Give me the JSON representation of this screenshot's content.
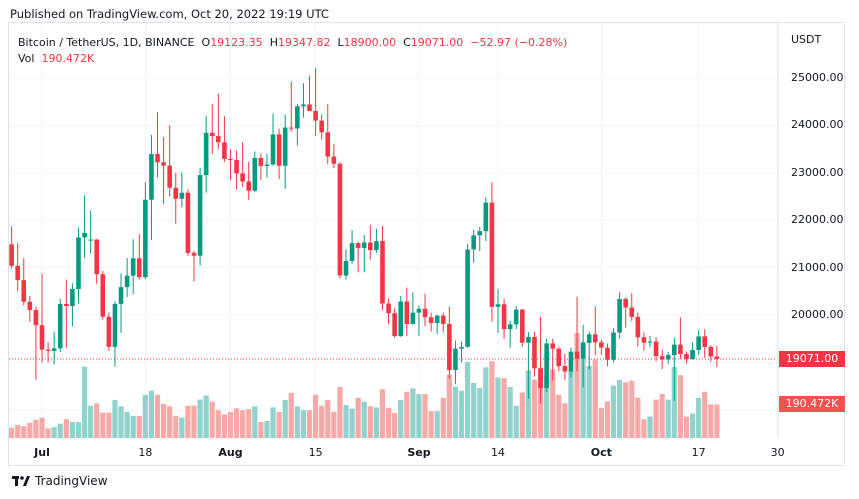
{
  "published": "Published on TradingView.com, Oct 20, 2022 19:19 UTC",
  "legend": {
    "symbol": "Bitcoin / TetherUS, 1D, BINANCE",
    "o_label": "O",
    "o": "19123.35",
    "h_label": "H",
    "h": "19347.82",
    "l_label": "L",
    "l": "18900.00",
    "c_label": "C",
    "c": "19071.00",
    "change": "−52.97 (−0.28%)",
    "vol_label": "Vol",
    "vol": "190.472K"
  },
  "price_axis": {
    "currency": "USDT",
    "ticks": [
      "25000.00",
      "24000.00",
      "23000.00",
      "22000.00",
      "21000.00",
      "20000.00"
    ],
    "last_price_tag": "19071.00",
    "last_volume_tag": "190.472K"
  },
  "time_axis": {
    "ticks": [
      {
        "label": "Jul",
        "date": "2022-07-01",
        "bold": true
      },
      {
        "label": "18",
        "date": "2022-07-18",
        "bold": false
      },
      {
        "label": "Aug",
        "date": "2022-08-01",
        "bold": true
      },
      {
        "label": "15",
        "date": "2022-08-15",
        "bold": false
      },
      {
        "label": "Sep",
        "date": "2022-09-01",
        "bold": true
      },
      {
        "label": "14",
        "date": "2022-09-14",
        "bold": false
      },
      {
        "label": "Oct",
        "date": "2022-10-01",
        "bold": true
      },
      {
        "label": "17",
        "date": "2022-10-17",
        "bold": false
      },
      {
        "label": "30",
        "date": "2022-10-30",
        "bold": false
      }
    ]
  },
  "footer": {
    "brand": "TradingView",
    "logo_icon": "tradingview-logo-icon"
  },
  "colors": {
    "up": "#089981",
    "down": "#f23645",
    "vol_up": "#92d2cc",
    "vol_down": "#f7a9a8",
    "grid": "#f0f3fa",
    "last_price": "#f23645",
    "vol_tag": "#f05350"
  },
  "chart_data": {
    "type": "candlestick",
    "title": "Bitcoin / TetherUS, 1D, BINANCE",
    "ylim": [
      18000,
      25400
    ],
    "columns": [
      "date",
      "open",
      "high",
      "low",
      "close",
      "volume_k"
    ],
    "start_date": "2022-06-26",
    "candles": [
      [
        21490,
        21868,
        20980,
        21038,
        58
      ],
      [
        21038,
        21520,
        20500,
        20735,
        73
      ],
      [
        20735,
        21200,
        20200,
        20280,
        67
      ],
      [
        20280,
        20400,
        19850,
        20105,
        86
      ],
      [
        20105,
        20180,
        18626,
        19785,
        102
      ],
      [
        19785,
        20876,
        19000,
        19270,
        115
      ],
      [
        19270,
        19430,
        19000,
        19243,
        54
      ],
      [
        19243,
        19650,
        18960,
        19297,
        61
      ],
      [
        19297,
        20340,
        19220,
        20231,
        81
      ],
      [
        20231,
        20750,
        19300,
        20190,
        106
      ],
      [
        20190,
        20675,
        19760,
        20548,
        90
      ],
      [
        20548,
        21840,
        20240,
        21637,
        90
      ],
      [
        21637,
        22527,
        21200,
        21731,
        403
      ],
      [
        21592,
        22200,
        21300,
        21592,
        182
      ],
      [
        21592,
        21600,
        20650,
        20860,
        196
      ],
      [
        20860,
        20930,
        19900,
        19963,
        144
      ],
      [
        19963,
        20050,
        19240,
        19328,
        144
      ],
      [
        19328,
        20290,
        18910,
        20234,
        215
      ],
      [
        20234,
        20880,
        19620,
        20588,
        179
      ],
      [
        20588,
        21200,
        20380,
        20830,
        148
      ],
      [
        20830,
        21600,
        20440,
        21195,
        125
      ],
      [
        21195,
        21700,
        20750,
        20798,
        125
      ],
      [
        20798,
        22800,
        20760,
        22432,
        244
      ],
      [
        22432,
        23800,
        21580,
        23396,
        267
      ],
      [
        23396,
        24276,
        22900,
        23223,
        244
      ],
      [
        23223,
        23750,
        22340,
        23152,
        192
      ],
      [
        23152,
        24000,
        22500,
        22684,
        179
      ],
      [
        22684,
        23000,
        21930,
        22451,
        125
      ],
      [
        22451,
        23000,
        22270,
        22579,
        115
      ],
      [
        22579,
        22650,
        21250,
        21310,
        182
      ],
      [
        21310,
        21350,
        20706,
        21251,
        182
      ],
      [
        21251,
        23100,
        21040,
        22952,
        217
      ],
      [
        22952,
        24200,
        22580,
        23843,
        240
      ],
      [
        23843,
        24450,
        23400,
        23774,
        205
      ],
      [
        23774,
        24670,
        23500,
        23643,
        157
      ],
      [
        23643,
        24200,
        23230,
        23293,
        134
      ],
      [
        23293,
        23500,
        22850,
        23269,
        148
      ],
      [
        23269,
        23470,
        22650,
        22987,
        167
      ],
      [
        22987,
        23650,
        22700,
        22818,
        157
      ],
      [
        22818,
        23230,
        22430,
        22622,
        163
      ],
      [
        22622,
        23450,
        22590,
        23312,
        179
      ],
      [
        23312,
        23400,
        22850,
        23145,
        90
      ],
      [
        23145,
        23400,
        22900,
        23175,
        96
      ],
      [
        23175,
        24250,
        23150,
        23810,
        173
      ],
      [
        23810,
        23930,
        22870,
        23149,
        148
      ],
      [
        23149,
        24230,
        22660,
        23954,
        215
      ],
      [
        23954,
        24918,
        23870,
        23935,
        255
      ],
      [
        23935,
        24450,
        23580,
        24403,
        179
      ],
      [
        24403,
        24890,
        24160,
        24442,
        157
      ],
      [
        24442,
        25047,
        24300,
        24305,
        157
      ],
      [
        24305,
        25211,
        23775,
        24101,
        244
      ],
      [
        24101,
        24230,
        23700,
        23854,
        182
      ],
      [
        23854,
        24450,
        23180,
        23342,
        215
      ],
      [
        23342,
        23600,
        23100,
        23191,
        148
      ],
      [
        23191,
        23220,
        20770,
        20834,
        288
      ],
      [
        20834,
        21380,
        20750,
        21140,
        186
      ],
      [
        21140,
        21790,
        21080,
        21516,
        167
      ],
      [
        21516,
        21540,
        20900,
        21416,
        227
      ],
      [
        21416,
        21690,
        20900,
        21529,
        205
      ],
      [
        21529,
        21900,
        21170,
        21368,
        179
      ],
      [
        21368,
        21820,
        21310,
        21560,
        173
      ],
      [
        21560,
        21880,
        20100,
        20241,
        276
      ],
      [
        20241,
        20350,
        19800,
        20037,
        169
      ],
      [
        20037,
        20150,
        19520,
        19555,
        142
      ],
      [
        19555,
        20400,
        19540,
        20285,
        215
      ],
      [
        20285,
        20580,
        19550,
        19811,
        261
      ],
      [
        19811,
        20480,
        19800,
        20050,
        280
      ],
      [
        20050,
        20200,
        19560,
        20131,
        248
      ],
      [
        20131,
        20450,
        19760,
        19952,
        248
      ],
      [
        19952,
        20050,
        19650,
        19832,
        152
      ],
      [
        19832,
        20000,
        19600,
        19986,
        152
      ],
      [
        19986,
        20050,
        19630,
        19812,
        227
      ],
      [
        19812,
        20180,
        18660,
        18837,
        357
      ],
      [
        18837,
        19460,
        18540,
        19290,
        290
      ],
      [
        19290,
        19440,
        19000,
        19329,
        267
      ],
      [
        19329,
        21500,
        19310,
        21381,
        430
      ],
      [
        21381,
        21800,
        21100,
        21680,
        311
      ],
      [
        21680,
        21860,
        21350,
        21769,
        282
      ],
      [
        21769,
        22490,
        21560,
        22370,
        399
      ],
      [
        22370,
        22799,
        19860,
        20173,
        434
      ],
      [
        20173,
        20550,
        19620,
        20226,
        342
      ],
      [
        20226,
        20340,
        19500,
        19701,
        338
      ],
      [
        19701,
        19880,
        19310,
        19803,
        288
      ],
      [
        19803,
        20190,
        19700,
        20113,
        182
      ],
      [
        20113,
        20130,
        19330,
        19416,
        257
      ],
      [
        19416,
        19640,
        18230,
        19538,
        382
      ],
      [
        19538,
        19650,
        18700,
        18876,
        330
      ],
      [
        18876,
        19960,
        18130,
        18461,
        397
      ],
      [
        18461,
        19500,
        18380,
        19401,
        353
      ],
      [
        19401,
        19500,
        18620,
        19289,
        388
      ],
      [
        19289,
        19320,
        18810,
        18921,
        244
      ],
      [
        18921,
        19180,
        18630,
        18808,
        196
      ],
      [
        18808,
        19310,
        18680,
        19227,
        382
      ],
      [
        19227,
        20385,
        18810,
        19079,
        593
      ],
      [
        19079,
        19790,
        18470,
        19412,
        545
      ],
      [
        19412,
        19650,
        18850,
        19591,
        407
      ],
      [
        19591,
        20180,
        19150,
        19423,
        444
      ],
      [
        19423,
        19480,
        19160,
        19311,
        169
      ],
      [
        19311,
        19400,
        18920,
        19056,
        207
      ],
      [
        19056,
        19720,
        19000,
        19630,
        296
      ],
      [
        19630,
        20480,
        19500,
        20337,
        328
      ],
      [
        20337,
        20370,
        19730,
        20158,
        315
      ],
      [
        20158,
        20460,
        19870,
        19960,
        323
      ],
      [
        19960,
        20050,
        19330,
        19530,
        227
      ],
      [
        19530,
        19630,
        19250,
        19417,
        106
      ],
      [
        19417,
        19560,
        19320,
        19439,
        121
      ],
      [
        19439,
        19530,
        19020,
        19131,
        217
      ],
      [
        19131,
        19270,
        18860,
        19060,
        248
      ],
      [
        19060,
        19220,
        18970,
        19155,
        217
      ],
      [
        19155,
        19520,
        18190,
        19375,
        401
      ],
      [
        19375,
        19950,
        19070,
        19176,
        355
      ],
      [
        19176,
        19230,
        18980,
        19069,
        121
      ],
      [
        19069,
        19420,
        19060,
        19262,
        138
      ],
      [
        19262,
        19680,
        19160,
        19549,
        227
      ],
      [
        19549,
        19700,
        19100,
        19327,
        261
      ],
      [
        19327,
        19360,
        19020,
        19123,
        190
      ],
      [
        19123,
        19347.82,
        18900,
        19071,
        190.472
      ]
    ]
  }
}
